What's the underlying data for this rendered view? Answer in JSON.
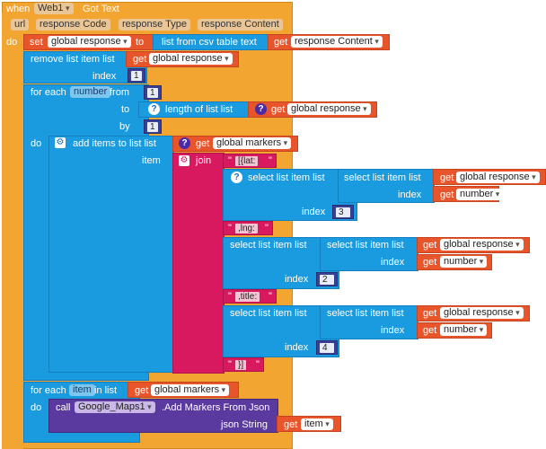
{
  "event": {
    "when": "when",
    "component": "Web1",
    "event_name": "Got Text",
    "do": "do"
  },
  "params": [
    "url",
    "response Code",
    "response Type",
    "response Content"
  ],
  "set_block": {
    "set": "set",
    "var": "global response",
    "to": "to",
    "csv": "list from csv table  text",
    "get": "get",
    "get_var": "response Content"
  },
  "remove_block": {
    "label": "remove list item  list",
    "get": "get",
    "get_var": "global response",
    "index_label": "index",
    "index_value": "1"
  },
  "for_each": {
    "label": "for each",
    "var": "number",
    "from": "from",
    "from_value": "1",
    "to": "to",
    "length": "length of list  list",
    "get": "get",
    "get_var": "global response",
    "by": "by",
    "by_value": "1",
    "do": "do"
  },
  "add_items": {
    "label": "add items to list  list",
    "get": "get",
    "get_var": "global markers",
    "item": "item",
    "join": "join"
  },
  "join_strings": [
    "[{lat:",
    ",lng:",
    ",title:",
    "}]"
  ],
  "selects": [
    {
      "outer": "select list item  list",
      "inner": "select list item  list",
      "get": "get",
      "var": "global response",
      "index": "index",
      "num_var": "number",
      "outer_index": "3"
    },
    {
      "outer": "select list item  list",
      "inner": "select list item  list",
      "get": "get",
      "var": "global response",
      "index": "index",
      "num_var": "number",
      "outer_index": "2"
    },
    {
      "outer": "select list item  list",
      "inner": "select list item  list",
      "get": "get",
      "var": "global response",
      "index": "index",
      "num_var": "number",
      "outer_index": "4"
    }
  ],
  "for_each_2": {
    "label": "for each",
    "var": "item",
    "in": "in list",
    "get": "get",
    "get_var": "global markers",
    "do": "do"
  },
  "call_block": {
    "call": "call",
    "component": "Google_Maps1",
    "method": ".Add Markers From Json",
    "json_label": "json String",
    "get": "get",
    "get_var": "item"
  },
  "colors": {
    "event": "#f3a532",
    "variable": "#e8552a",
    "list": "#1a9be0",
    "text": "#d8195f",
    "math": "#3a3f96",
    "component": "#5a3a9e"
  }
}
